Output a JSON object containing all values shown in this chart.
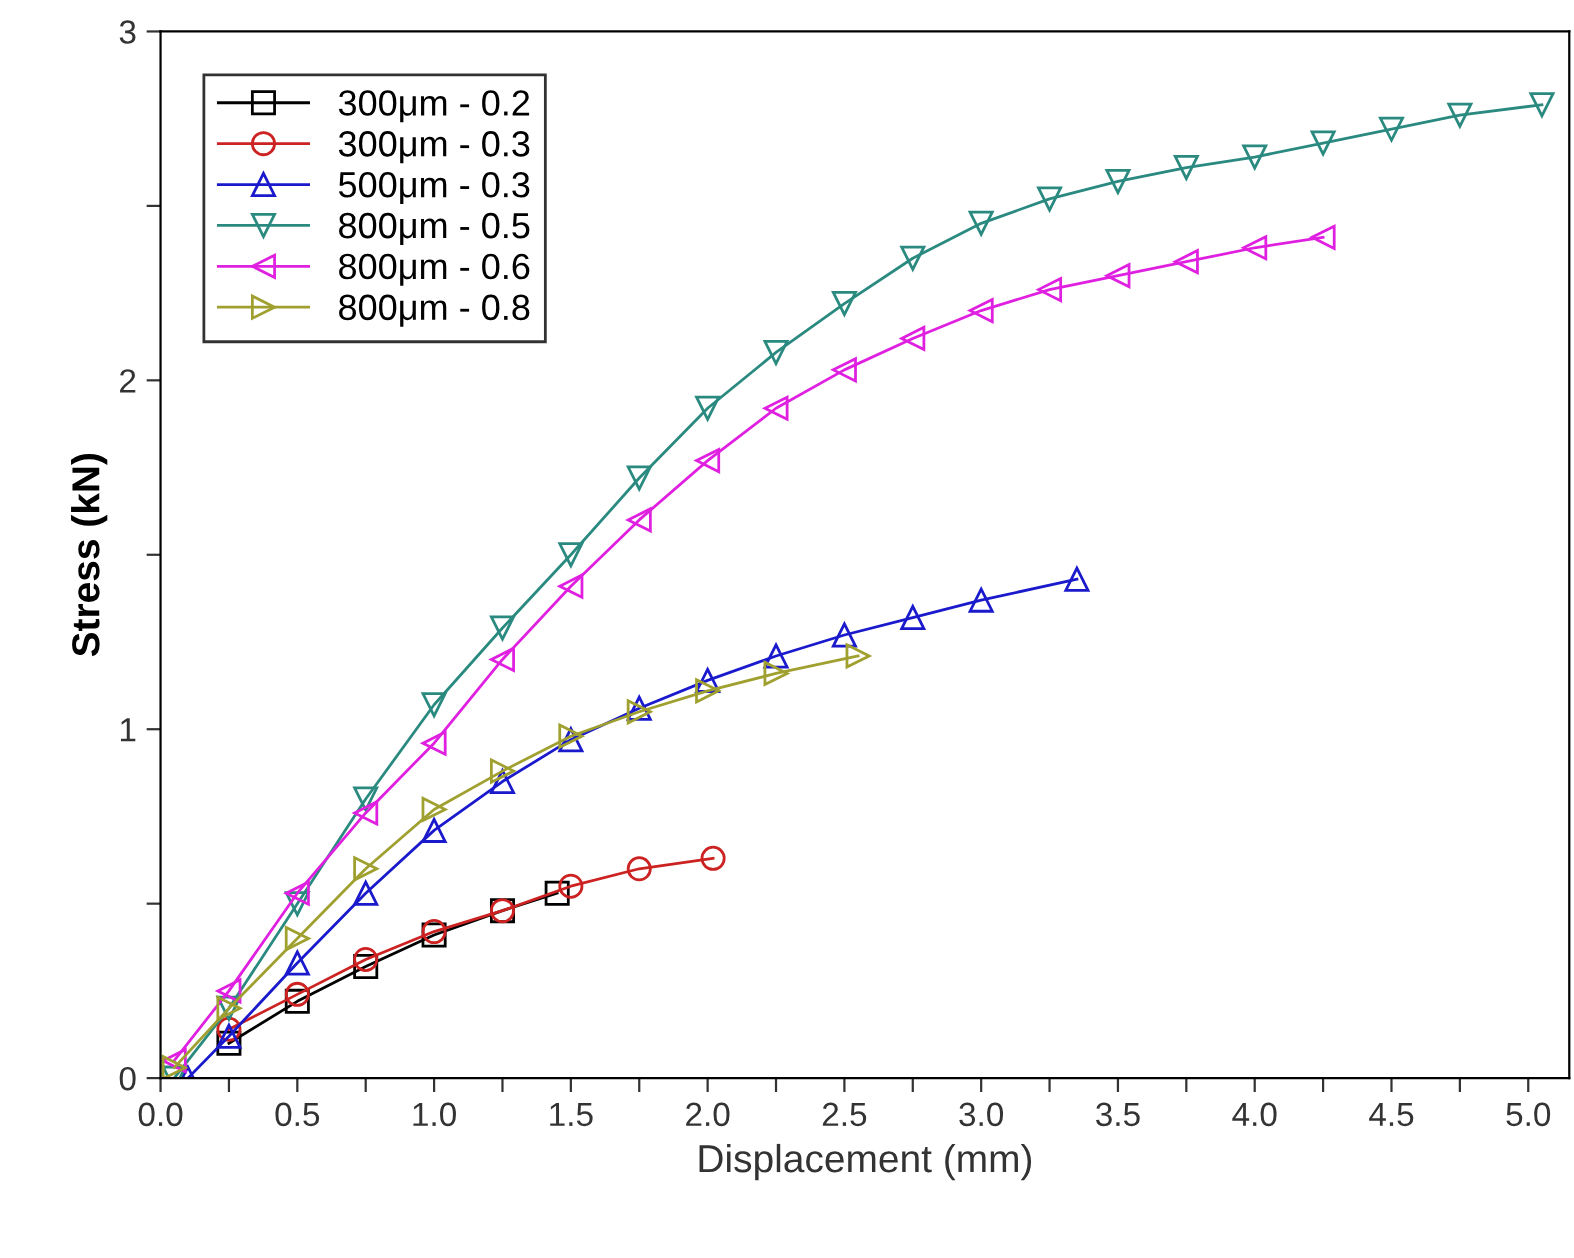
{
  "chart_data": {
    "type": "line",
    "xlabel": "Displacement (mm)",
    "ylabel": "Stress (kN)",
    "xlim": [
      0,
      5.15
    ],
    "ylim": [
      0,
      3
    ],
    "xticks": [
      {
        "value": 0,
        "label": "0.0"
      },
      {
        "value": 0.25,
        "label": null
      },
      {
        "value": 0.5,
        "label": "0.5"
      },
      {
        "value": 0.75,
        "label": null
      },
      {
        "value": 1,
        "label": "1.0"
      },
      {
        "value": 1.25,
        "label": null
      },
      {
        "value": 1.5,
        "label": "1.5"
      },
      {
        "value": 1.75,
        "label": null
      },
      {
        "value": 2,
        "label": "2.0"
      },
      {
        "value": 2.25,
        "label": null
      },
      {
        "value": 2.5,
        "label": "2.5"
      },
      {
        "value": 2.75,
        "label": null
      },
      {
        "value": 3,
        "label": "3.0"
      },
      {
        "value": 3.25,
        "label": null
      },
      {
        "value": 3.5,
        "label": "3.5"
      },
      {
        "value": 3.75,
        "label": null
      },
      {
        "value": 4,
        "label": "4.0"
      },
      {
        "value": 4.25,
        "label": null
      },
      {
        "value": 4.5,
        "label": "4.5"
      },
      {
        "value": 4.75,
        "label": null
      },
      {
        "value": 5,
        "label": "5.0"
      }
    ],
    "yticks": [
      0,
      {
        "value": 0.5,
        "label": null
      },
      1,
      {
        "value": 1.5,
        "label": null
      },
      2,
      {
        "value": 2.5,
        "label": null
      },
      3
    ],
    "grid": false,
    "legend": "top left",
    "line_style": "solid",
    "series": [
      {
        "name": "300μm - 0.2",
        "color": "#000000",
        "marker": "square",
        "x": [
          0.25,
          0.5,
          0.75,
          1.0,
          1.25,
          1.45
        ],
        "values": [
          0.1,
          0.22,
          0.32,
          0.41,
          0.48,
          0.53
        ]
      },
      {
        "name": "300μm - 0.3",
        "color": "#cc2222",
        "marker": "circle",
        "x": [
          0.25,
          0.5,
          0.75,
          1.0,
          1.25,
          1.5,
          1.75,
          2.02
        ],
        "values": [
          0.14,
          0.24,
          0.34,
          0.42,
          0.48,
          0.55,
          0.6,
          0.63
        ]
      },
      {
        "name": "500μm - 0.3",
        "color": "#1a1acc",
        "marker": "triangle",
        "x": [
          0.1,
          0.25,
          0.5,
          0.75,
          1.0,
          1.25,
          1.5,
          1.75,
          2.0,
          2.25,
          2.5,
          2.75,
          3.0,
          3.35
        ],
        "values": [
          0,
          0.12,
          0.33,
          0.53,
          0.71,
          0.85,
          0.97,
          1.06,
          1.14,
          1.21,
          1.27,
          1.32,
          1.37,
          1.43
        ]
      },
      {
        "name": "800μm - 0.5",
        "color": "#2a8a80",
        "marker": "triangle_down",
        "x": [
          0.05,
          0.25,
          0.5,
          0.75,
          1.0,
          1.25,
          1.5,
          1.75,
          2.0,
          2.25,
          2.5,
          2.75,
          3.0,
          3.25,
          3.5,
          3.75,
          4.0,
          4.25,
          4.5,
          4.75,
          5.05
        ],
        "values": [
          0,
          0.2,
          0.5,
          0.8,
          1.07,
          1.29,
          1.5,
          1.72,
          1.92,
          2.08,
          2.22,
          2.35,
          2.45,
          2.52,
          2.57,
          2.61,
          2.64,
          2.68,
          2.72,
          2.76,
          2.79
        ]
      },
      {
        "name": "800μm - 0.6",
        "color": "#e020e0",
        "marker": "triangle_left",
        "x": [
          0.05,
          0.25,
          0.5,
          0.75,
          1.0,
          1.25,
          1.5,
          1.75,
          2.0,
          2.25,
          2.5,
          2.75,
          3.0,
          3.25,
          3.5,
          3.75,
          4.0,
          4.25
        ],
        "values": [
          0.05,
          0.25,
          0.53,
          0.76,
          0.96,
          1.2,
          1.41,
          1.6,
          1.77,
          1.92,
          2.03,
          2.12,
          2.2,
          2.26,
          2.3,
          2.34,
          2.38,
          2.41
        ]
      },
      {
        "name": "800μm - 0.8",
        "color": "#a0a030",
        "marker": "triangle_right",
        "x": [
          0.05,
          0.25,
          0.5,
          0.75,
          1.0,
          1.25,
          1.5,
          1.75,
          2.0,
          2.25,
          2.55
        ],
        "values": [
          0.03,
          0.2,
          0.4,
          0.6,
          0.77,
          0.88,
          0.98,
          1.05,
          1.11,
          1.16,
          1.21
        ]
      }
    ]
  }
}
